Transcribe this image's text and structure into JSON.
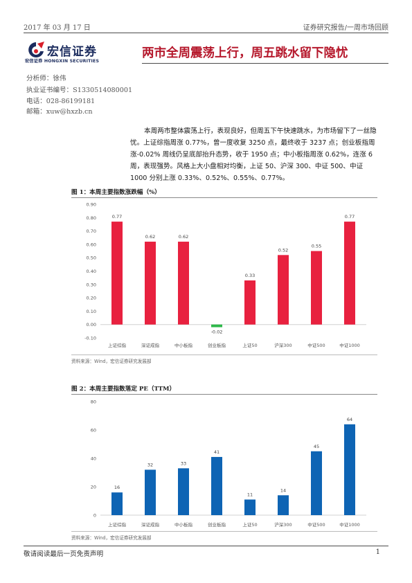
{
  "header": {
    "date": "2017 年 03 月 17 日",
    "report_type": "证券研究报告/一周市场回顾"
  },
  "logo": {
    "name_cn": "宏信证券",
    "name_small_cn": "宏信证券",
    "name_en": "HONGXIN SECURITIES"
  },
  "title": "两市全周震荡上行，周五跳水留下隐忧",
  "analyst": {
    "name": "分析师：徐伟",
    "license": "执业证书编号：S1330514080001",
    "phone": "电话：028-86199181",
    "email": "邮箱：xuw@hxzb.cn"
  },
  "summary": "本周两市整体震荡上行，表现良好，但周五下午快速跳水，为市场留下了一丝隐忧。上证综指周涨 0.77%，曾一度收复 3250 点，最终收于 3237 点；创业板指周涨-0.02% 周线仍呈底部抬升态势，收于 1950 点；中小板指周涨 0.62%，连涨 6 周，表现强势。风格上大小盘相对均衡，上证 50、沪深 300、中证 500、中证 1000 分别上涨 0.33%、0.52%、0.55%、0.77%。",
  "figure1": {
    "title": "图 1：本周主要指数涨跌幅（%）",
    "source": "资料来源：Wind，宏信证券研究发展部"
  },
  "figure2": {
    "title": "图 2：本周主要指数落定 PE（TTM）",
    "source": "资料来源：Wind，宏信证券研究发展部"
  },
  "chart_data": [
    {
      "type": "bar",
      "categories": [
        "上证综指",
        "深证成指",
        "中小板指",
        "创业板指",
        "上证50",
        "沪深300",
        "中证500",
        "中证1000"
      ],
      "values": [
        0.77,
        0.62,
        0.62,
        -0.02,
        0.33,
        0.52,
        0.55,
        0.77
      ],
      "data_labels": [
        "0.77",
        "0.62",
        "0.62",
        "-0.02",
        "0.33",
        "0.52",
        "0.55",
        "0.77"
      ],
      "yticks": [
        "0.90",
        "0.80",
        "0.70",
        "0.60",
        "0.50",
        "0.40",
        "0.30",
        "0.20",
        "0.10",
        "0.00",
        "-0.10"
      ],
      "ylim": [
        -0.1,
        0.9
      ],
      "colors": {
        "positive": "#e8213f",
        "negative": "#2eb84a"
      },
      "grid": false
    },
    {
      "type": "bar",
      "categories": [
        "上证综指",
        "深证成指",
        "中小板指",
        "创业板指",
        "上证50",
        "沪深300",
        "中证500",
        "中证1000"
      ],
      "values": [
        16,
        32,
        33,
        41,
        11,
        14,
        45,
        64
      ],
      "data_labels": [
        "16",
        "32",
        "33",
        "41",
        "11",
        "14",
        "45",
        "64"
      ],
      "yticks": [
        "80",
        "60",
        "40",
        "20",
        "0"
      ],
      "ylim": [
        0,
        80
      ],
      "colors": {
        "bar": "#0e64b4"
      },
      "grid": false
    }
  ],
  "footer": {
    "disclaimer": "敬请阅读最后一页免责声明",
    "page": "1"
  }
}
